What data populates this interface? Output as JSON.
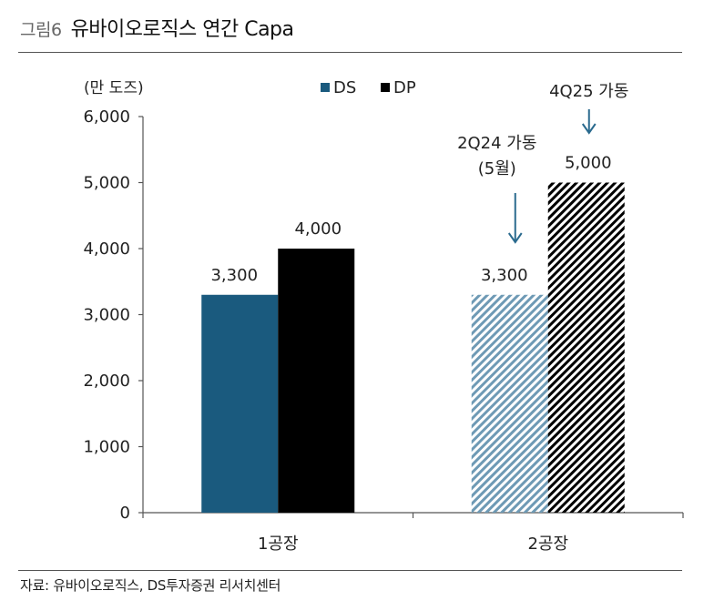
{
  "header": {
    "figure_label": "그림6",
    "title": "유바이오로직스 연간 Capa"
  },
  "source": "자료: 유바이오로직스, DS투자증권 리서치센터",
  "colors": {
    "ds": "#1a5a7e",
    "dp": "#000000",
    "ds_planned": "#6e9ab5",
    "dp_planned": "#000000",
    "annotation_arrow": "#2a6a8e"
  },
  "chart_data": {
    "type": "bar",
    "unit_label": "(만 도즈)",
    "categories": [
      "1공장",
      "2공장"
    ],
    "series": [
      {
        "name": "DS",
        "values": [
          3300,
          3300
        ],
        "value_labels": [
          "3,300",
          "3,300"
        ]
      },
      {
        "name": "DP",
        "values": [
          4000,
          5000
        ],
        "value_labels": [
          "4,000",
          "5,000"
        ]
      }
    ],
    "planned_category": "2공장",
    "ylim": [
      0,
      6000
    ],
    "yticks": [
      0,
      1000,
      2000,
      3000,
      4000,
      5000,
      6000
    ],
    "ytick_labels": [
      "0",
      "1,000",
      "2,000",
      "3,000",
      "4,000",
      "5,000",
      "6,000"
    ],
    "legend_position": "top-center",
    "grid": false,
    "annotations": [
      {
        "series": "DS",
        "category": "2공장",
        "lines": [
          "2Q24 가동",
          "(5월)"
        ]
      },
      {
        "series": "DP",
        "category": "2공장",
        "lines": [
          "4Q25 가동"
        ]
      }
    ]
  }
}
